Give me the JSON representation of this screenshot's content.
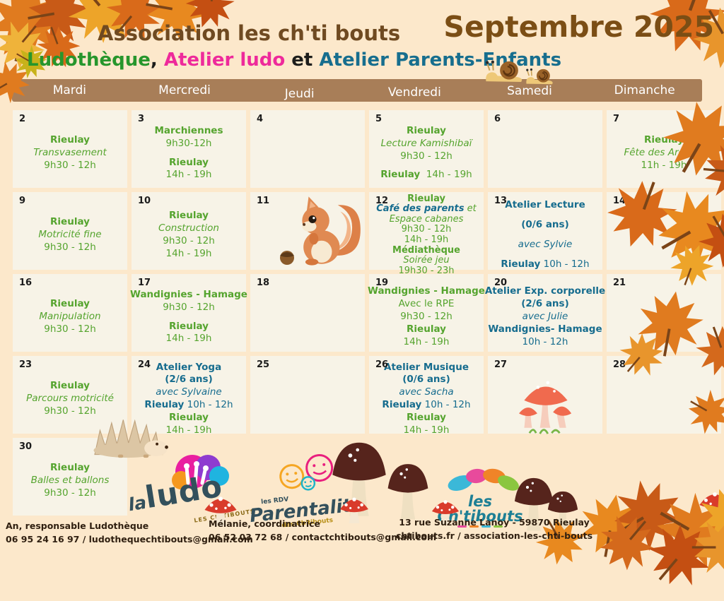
{
  "header": {
    "title": "Association les ch'ti bouts",
    "month": "Septembre 2025",
    "subtitle_segments": [
      {
        "text": "Ludothèque",
        "color": "#27962c"
      },
      {
        "text": ", ",
        "color": "#1d1d1b"
      },
      {
        "text": "Atelier ludo",
        "color": "#ee2a9b"
      },
      {
        "text": " et ",
        "color": "#1d1d1b"
      },
      {
        "text": "Atelier Parents-Enfants",
        "color": "#176e8e"
      }
    ]
  },
  "day_headers": [
    "Mardi",
    "Mercredi",
    "Jeudi",
    "Vendredi",
    "Samedi",
    "Dimanche"
  ],
  "calendar": {
    "rows": [
      [
        {
          "n": "2",
          "lines": [
            [
              [
                "gb",
                "Rieulay"
              ]
            ],
            [
              [
                "gi",
                "Transvasement"
              ]
            ],
            [
              [
                "g",
                "9h30 - 12h"
              ]
            ]
          ]
        },
        {
          "n": "3",
          "lines": [
            [
              [
                "gb",
                "Marchiennes"
              ]
            ],
            [
              [
                "g",
                "9h30-12h"
              ]
            ],
            [],
            [
              [
                "gb",
                "Rieulay"
              ]
            ],
            [
              [
                "g",
                "14h - 19h"
              ]
            ]
          ]
        },
        {
          "n": "4",
          "lines": []
        },
        {
          "n": "5",
          "lines": [
            [
              [
                "gb",
                "Rieulay"
              ]
            ],
            [
              [
                "gi",
                "Lecture Kamishibaï"
              ]
            ],
            [
              [
                "g",
                "9h30 - 12h"
              ]
            ],
            [],
            [
              [
                "gb",
                "Rieulay"
              ],
              [
                "g",
                "  14h - 19h"
              ]
            ]
          ]
        },
        {
          "n": "6",
          "lines": []
        },
        {
          "n": "7",
          "lines": [
            [
              [
                "gb",
                "Rieulay"
              ]
            ],
            [
              [
                "gi",
                "Fête des Argales"
              ]
            ],
            [
              [
                "g",
                "11h - 19h"
              ]
            ]
          ]
        }
      ],
      [
        {
          "n": "9",
          "lines": [
            [
              [
                "gb",
                "Rieulay"
              ]
            ],
            [
              [
                "gi",
                "Motricité fine"
              ]
            ],
            [
              [
                "g",
                "9h30 - 12h"
              ]
            ]
          ]
        },
        {
          "n": "10",
          "lines": [
            [
              [
                "gb",
                "Rieulay"
              ]
            ],
            [
              [
                "gi",
                "Construction"
              ]
            ],
            [
              [
                "g",
                "9h30 - 12h"
              ]
            ],
            [
              [
                "g",
                "14h - 19h"
              ]
            ]
          ]
        },
        {
          "n": "11",
          "lines": [],
          "art": "squirrel"
        },
        {
          "n": "12",
          "tight": true,
          "lines": [
            [
              [
                "gb",
                "Rieulay"
              ]
            ],
            [
              [
                "tbi",
                "Café des parents"
              ],
              [
                "gi",
                " et"
              ]
            ],
            [
              [
                "gi",
                "Espace cabanes"
              ]
            ],
            [
              [
                "g",
                "9h30 - 12h"
              ]
            ],
            [
              [
                "g",
                "14h - 19h"
              ]
            ],
            [
              [
                "gb",
                "Médiathèque"
              ]
            ],
            [
              [
                "gi",
                "Soirée jeu"
              ]
            ],
            [
              [
                "g",
                "19h30 - 23h"
              ]
            ]
          ]
        },
        {
          "n": "13",
          "roomy": true,
          "lines": [
            [
              [
                "tb",
                "Atelier Lecture"
              ]
            ],
            [
              [
                "tb",
                "(0/6 ans)"
              ]
            ],
            [
              [
                "ti",
                "avec Sylvie"
              ]
            ],
            [
              [
                "tb",
                "Rieulay"
              ],
              [
                "t",
                " 10h - 12h"
              ]
            ]
          ]
        },
        {
          "n": "14",
          "lines": []
        }
      ],
      [
        {
          "n": "16",
          "lines": [
            [
              [
                "gb",
                "Rieulay"
              ]
            ],
            [
              [
                "gi",
                "Manipulation"
              ]
            ],
            [
              [
                "g",
                "9h30 - 12h"
              ]
            ]
          ]
        },
        {
          "n": "17",
          "lines": [
            [
              [
                "gb",
                "Wandignies - Hamage"
              ]
            ],
            [
              [
                "g",
                "9h30 - 12h"
              ]
            ],
            [],
            [
              [
                "gb",
                "Rieulay"
              ]
            ],
            [
              [
                "g",
                "14h - 19h"
              ]
            ]
          ]
        },
        {
          "n": "18",
          "lines": []
        },
        {
          "n": "19",
          "lines": [
            [
              [
                "gb",
                "Wandignies - Hamage"
              ]
            ],
            [
              [
                "g",
                "Avec le RPE"
              ]
            ],
            [
              [
                "g",
                "9h30 - 12h"
              ]
            ],
            [],
            [
              [
                "gb",
                "Rieulay"
              ]
            ],
            [
              [
                "g",
                "14h - 19h"
              ]
            ]
          ]
        },
        {
          "n": "20",
          "lines": [
            [
              [
                "tb",
                "Atelier Exp. corporelle"
              ]
            ],
            [
              [
                "tb",
                "(2/6 ans)"
              ]
            ],
            [
              [
                "ti",
                "avec Julie"
              ]
            ],
            [
              [
                "tb",
                "Wandignies- Hamage"
              ]
            ],
            [
              [
                "t",
                "10h - 12h"
              ]
            ]
          ]
        },
        {
          "n": "21",
          "lines": []
        }
      ],
      [
        {
          "n": "23",
          "lines": [
            [
              [
                "gb",
                "Rieulay"
              ]
            ],
            [
              [
                "gi",
                "Parcours motricité"
              ]
            ],
            [
              [
                "g",
                "9h30 - 12h"
              ]
            ]
          ]
        },
        {
          "n": "24",
          "lines": [
            [
              [
                "tb",
                "Atelier Yoga"
              ]
            ],
            [
              [
                "tb",
                "(2/6 ans)"
              ]
            ],
            [
              [
                "ti",
                "avec Sylvaine"
              ]
            ],
            [
              [
                "tb",
                "Rieulay"
              ],
              [
                "t",
                " 10h - 12h"
              ]
            ],
            [
              [
                "gb",
                "Rieulay"
              ]
            ],
            [
              [
                "g",
                "14h - 19h"
              ]
            ]
          ]
        },
        {
          "n": "25",
          "lines": []
        },
        {
          "n": "26",
          "lines": [
            [
              [
                "tb",
                "Atelier Musique"
              ]
            ],
            [
              [
                "tb",
                "(0/6 ans)"
              ]
            ],
            [
              [
                "ti",
                "avec Sacha"
              ]
            ],
            [
              [
                "tb",
                "Rieulay"
              ],
              [
                "t",
                " 10h - 12h"
              ]
            ],
            [
              [
                "gb",
                "Rieulay"
              ]
            ],
            [
              [
                "g",
                "14h - 19h"
              ]
            ]
          ]
        },
        {
          "n": "27",
          "lines": [],
          "art": "mushrooms"
        },
        {
          "n": "28",
          "lines": []
        }
      ],
      [
        {
          "n": "30",
          "lines": [
            [
              [
                "gb",
                "Rieulay"
              ]
            ],
            [
              [
                "gi",
                "Balles et ballons"
              ]
            ],
            [
              [
                "g",
                "9h30 - 12h"
              ]
            ]
          ]
        },
        null,
        null,
        null,
        null,
        null
      ]
    ]
  },
  "footer": {
    "contacts": [
      {
        "line1": "An, responsable Ludothèque",
        "line2": "06 95 24 16 97  /  ludothequechtibouts@gmail.com"
      },
      {
        "line1": "Mélanie, coordinatrice",
        "line2": "06 52 03 72 68  /  contactchtibouts@gmail.com"
      },
      {
        "line1": "13 rue Suzanne Lanoy - 59870 Rieulay",
        "line2": "chtibouts.fr   /   association-les-chti-bouts"
      }
    ]
  },
  "logos": {
    "ludo_la": "la",
    "ludo_main": "ludo",
    "ludo_sub": "LES CH'TIBOUTS",
    "parent_top": "les RDV",
    "parent_main": "Parentalité",
    "parent_sub": "des Ch'tibouts",
    "chti_main": "les Ch'tibouts"
  },
  "decor_icons": [
    "autumn-leaf",
    "snail",
    "squirrel",
    "hazelnut",
    "hedgehog",
    "red-mushrooms",
    "brown-mushroom",
    "toadstool"
  ],
  "colors": {
    "page_bg": "#fce8cb",
    "cell_bg": "#f7f3e7",
    "day_bar": "#a87e58",
    "green": "#55a42e",
    "teal": "#166c8e",
    "magenta": "#ee2a9b",
    "title_brown": "#6f4a21",
    "month_brown": "#7b4e15",
    "footer_text": "#2f1f10"
  }
}
